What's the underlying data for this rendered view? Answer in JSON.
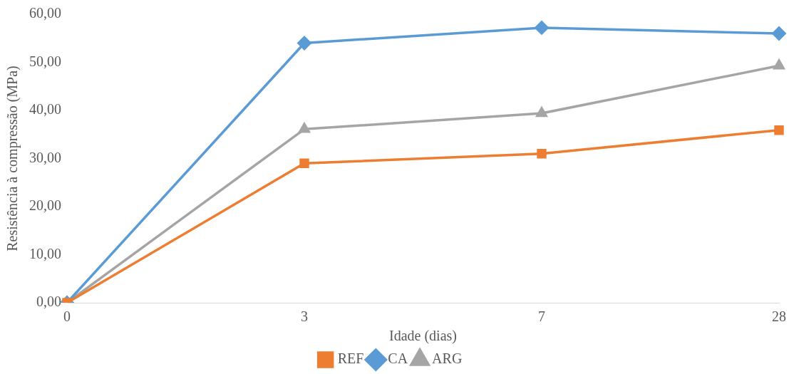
{
  "chart_data": {
    "type": "line",
    "xlabel": "Idade (dias)",
    "ylabel": "Resistência à compressão (MPa)",
    "categories": [
      "0",
      "3",
      "7",
      "28"
    ],
    "series": [
      {
        "name": "REF",
        "color": "#ed7d31",
        "marker": "square",
        "values": [
          0,
          29.0,
          31.0,
          35.9
        ]
      },
      {
        "name": "CA",
        "color": "#5b9bd5",
        "marker": "diamond",
        "values": [
          0,
          54.0,
          57.2,
          56.0
        ]
      },
      {
        "name": "ARG",
        "color": "#a5a5a5",
        "marker": "triangle",
        "values": [
          0,
          36.1,
          39.4,
          49.3
        ]
      }
    ],
    "ylim": [
      0,
      60
    ],
    "yticks": [
      {
        "value": 0,
        "label": "0,00"
      },
      {
        "value": 10,
        "label": "10,00"
      },
      {
        "value": 20,
        "label": "20,00"
      },
      {
        "value": 30,
        "label": "30,00"
      },
      {
        "value": 40,
        "label": "40,00"
      },
      {
        "value": 50,
        "label": "50,00"
      },
      {
        "value": 60,
        "label": "60,00"
      }
    ],
    "grid": false,
    "legend": "bottom",
    "line_style": "solid"
  }
}
